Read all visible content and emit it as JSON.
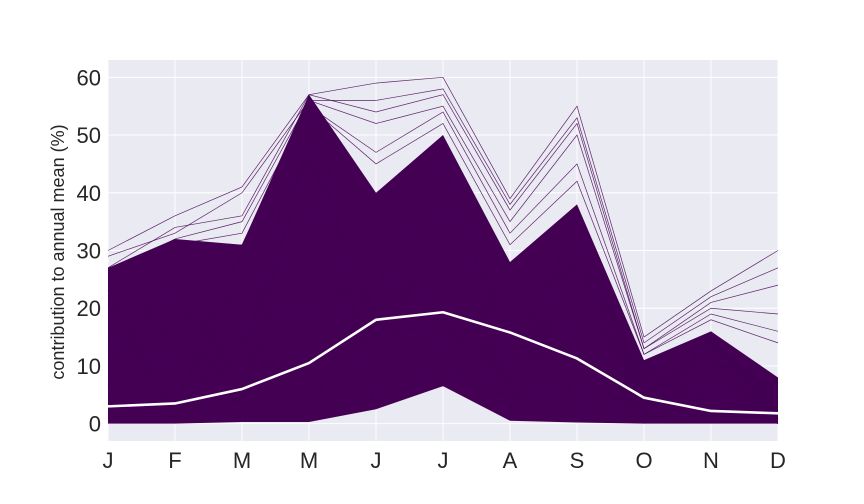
{
  "chart_data": {
    "type": "line",
    "title": "",
    "xlabel": "",
    "ylabel": "contribution to annual mean (%)",
    "categories": [
      "J",
      "F",
      "M",
      "M",
      "J",
      "J",
      "A",
      "S",
      "O",
      "N",
      "D"
    ],
    "ylim": [
      -3,
      63
    ],
    "yticks": [
      0,
      10,
      20,
      30,
      40,
      50,
      60
    ],
    "grid": true,
    "background": "#eaeaf2",
    "colors": {
      "ensemble": "#440154",
      "mean": "#ffffff",
      "grid": "#ffffff"
    },
    "ensemble_envelope": {
      "lower": [
        0,
        0,
        0.3,
        0.3,
        2.5,
        6.5,
        0.5,
        0.2,
        0,
        0,
        0
      ],
      "upper": [
        27,
        32,
        31,
        57,
        40,
        50,
        28,
        38,
        11,
        16,
        8
      ]
    },
    "outlier_max_lines": [
      [
        30,
        36,
        41,
        57,
        59,
        60,
        39,
        55,
        15,
        23,
        30
      ],
      [
        29,
        33,
        40,
        56,
        56,
        58,
        38,
        53,
        14,
        22,
        27
      ],
      [
        27,
        34,
        36,
        57,
        54,
        57,
        37,
        52,
        13,
        21,
        24
      ],
      [
        26,
        32,
        35,
        56,
        52,
        55,
        35,
        50,
        13,
        20,
        19
      ],
      [
        25,
        31,
        33,
        55,
        47,
        54,
        33,
        45,
        12,
        19,
        16
      ],
      [
        24,
        30,
        31,
        55,
        45,
        52,
        31,
        42,
        12,
        18,
        14
      ]
    ],
    "series": [
      {
        "name": "",
        "values": [
          3,
          3.5,
          6,
          10.5,
          18,
          19.3,
          15.8,
          11.3,
          4.5,
          2.2,
          1.8
        ]
      }
    ]
  }
}
